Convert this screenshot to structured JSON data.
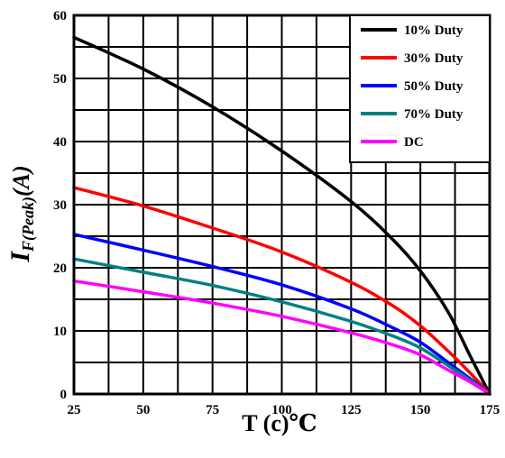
{
  "chart_data": {
    "type": "line",
    "xlabel": "T (c)℃",
    "ylabel_main": "I",
    "ylabel_sub": "F(Peak)",
    "ylabel_unit": "(A)",
    "xlim": [
      25,
      175
    ],
    "ylim": [
      0,
      60
    ],
    "x_ticks": [
      25,
      50,
      75,
      100,
      125,
      150,
      175
    ],
    "y_ticks": [
      0,
      10,
      20,
      30,
      40,
      50,
      60
    ],
    "grid": true,
    "legend_position": "top-right",
    "series": [
      {
        "name": "10% Duty",
        "color": "#000000",
        "points": [
          [
            25,
            56.5
          ],
          [
            50,
            51.5
          ],
          [
            75,
            45.5
          ],
          [
            100,
            38.5
          ],
          [
            125,
            30.5
          ],
          [
            140,
            24.5
          ],
          [
            150,
            19.5
          ],
          [
            160,
            13
          ],
          [
            168,
            6
          ],
          [
            175,
            0
          ]
        ]
      },
      {
        "name": "30% Duty",
        "color": "#ff0000",
        "points": [
          [
            25,
            32.7
          ],
          [
            50,
            29.8
          ],
          [
            75,
            26.3
          ],
          [
            100,
            22.5
          ],
          [
            125,
            17.7
          ],
          [
            140,
            14
          ],
          [
            150,
            10.8
          ],
          [
            160,
            6.8
          ],
          [
            168,
            3.3
          ],
          [
            175,
            0
          ]
        ]
      },
      {
        "name": "50% Duty",
        "color": "#0000ff",
        "points": [
          [
            25,
            25.3
          ],
          [
            50,
            22.8
          ],
          [
            75,
            20.2
          ],
          [
            100,
            17.3
          ],
          [
            125,
            13.5
          ],
          [
            140,
            10.5
          ],
          [
            150,
            8.2
          ],
          [
            160,
            5
          ],
          [
            168,
            2.4
          ],
          [
            175,
            0
          ]
        ]
      },
      {
        "name": "70% Duty",
        "color": "#008080",
        "points": [
          [
            25,
            21.4
          ],
          [
            50,
            19.3
          ],
          [
            75,
            17.2
          ],
          [
            100,
            14.6
          ],
          [
            125,
            11.5
          ],
          [
            140,
            9.2
          ],
          [
            150,
            7.3
          ],
          [
            160,
            4.5
          ],
          [
            168,
            2.2
          ],
          [
            175,
            0
          ]
        ]
      },
      {
        "name": "DC",
        "color": "#ff00ff",
        "points": [
          [
            25,
            17.9
          ],
          [
            50,
            16.2
          ],
          [
            75,
            14.4
          ],
          [
            100,
            12.3
          ],
          [
            125,
            9.7
          ],
          [
            140,
            7.8
          ],
          [
            150,
            6.2
          ],
          [
            160,
            3.8
          ],
          [
            168,
            1.9
          ],
          [
            175,
            0
          ]
        ]
      }
    ]
  }
}
